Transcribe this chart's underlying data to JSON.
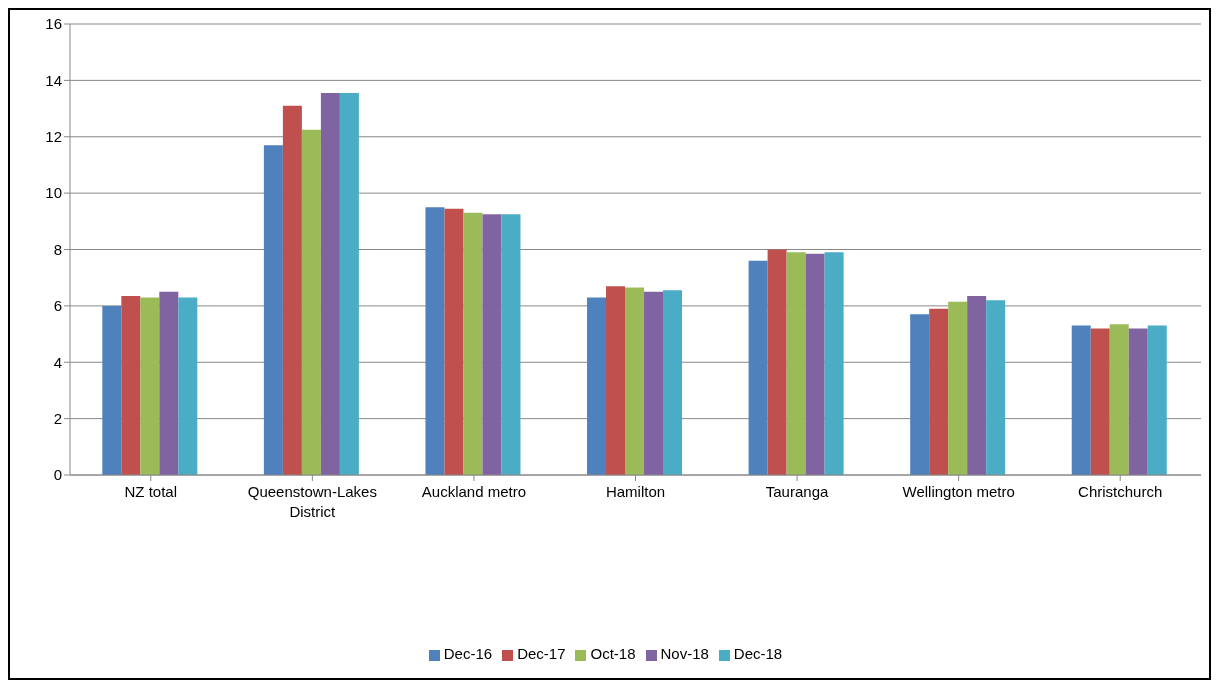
{
  "chart_data": {
    "type": "bar",
    "categories": [
      "NZ total",
      "Queenstown-Lakes District",
      "Auckland metro",
      "Hamilton",
      "Tauranga",
      "Wellington metro",
      "Christchurch"
    ],
    "series": [
      {
        "name": "Dec-16",
        "color": "#4f81bd",
        "values": [
          6.0,
          11.7,
          9.5,
          6.3,
          7.6,
          5.7,
          5.3
        ]
      },
      {
        "name": "Dec-17",
        "color": "#c0504d",
        "values": [
          6.35,
          13.1,
          9.45,
          6.7,
          8.0,
          5.9,
          5.2
        ]
      },
      {
        "name": "Oct-18",
        "color": "#9bbb59",
        "values": [
          6.3,
          12.25,
          9.3,
          6.65,
          7.9,
          6.15,
          5.35
        ]
      },
      {
        "name": "Nov-18",
        "color": "#8064a2",
        "values": [
          6.5,
          13.55,
          9.25,
          6.5,
          7.85,
          6.35,
          5.2
        ]
      },
      {
        "name": "Dec-18",
        "color": "#4bacc6",
        "values": [
          6.3,
          13.55,
          9.25,
          6.55,
          7.9,
          6.2,
          5.3
        ]
      }
    ],
    "ylim": [
      0,
      16
    ],
    "yticks": [
      0,
      2,
      4,
      6,
      8,
      10,
      12,
      14,
      16
    ],
    "grid": "y",
    "legend": "bottom"
  }
}
